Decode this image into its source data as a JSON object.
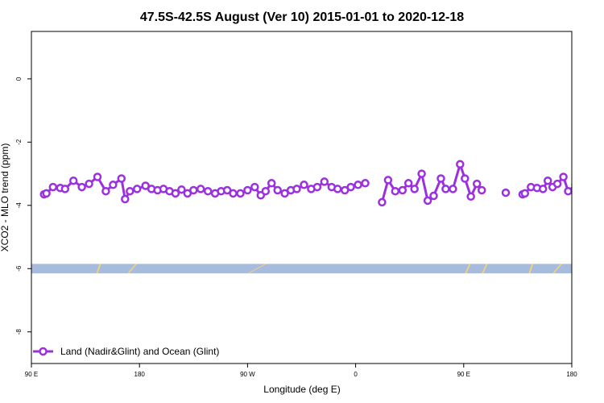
{
  "chart_data": {
    "type": "line",
    "title": "47.5S-42.5S August (Ver 10)   2015-01-01 to 2020-12-18",
    "xlabel": "Longitude (deg E)",
    "ylabel": "XCO2 - MLO trend (ppm)",
    "xlim": [
      90,
      540
    ],
    "ylim": [
      -9,
      1.5
    ],
    "x_ticks": [
      {
        "value": 90,
        "label": "90 E"
      },
      {
        "value": 180,
        "label": "180"
      },
      {
        "value": 270,
        "label": "90 W"
      },
      {
        "value": 360,
        "label": "0"
      },
      {
        "value": 450,
        "label": "90 E"
      },
      {
        "value": 540,
        "label": "180"
      }
    ],
    "y_ticks": [
      {
        "value": 0,
        "label": "0"
      },
      {
        "value": -2,
        "label": "-2"
      },
      {
        "value": -4,
        "label": "-4"
      },
      {
        "value": -6,
        "label": "-6"
      },
      {
        "value": -8,
        "label": "-8"
      }
    ],
    "colors": {
      "series": "#9b30e0",
      "ocean": "#a7bcdc",
      "land": "#f5d27a"
    },
    "series": [
      {
        "name": "Land (Nadir&Glint) and Ocean (Glint)",
        "segments": [
          [
            [
              100.5,
              -3.65
            ],
            [
              102.5,
              -3.62
            ],
            [
              108,
              -3.42
            ],
            [
              114,
              -3.45
            ],
            [
              118,
              -3.48
            ],
            [
              125,
              -3.22
            ],
            [
              132,
              -3.42
            ],
            [
              138,
              -3.32
            ],
            [
              145,
              -3.1
            ],
            [
              152,
              -3.55
            ],
            [
              158,
              -3.35
            ],
            [
              165,
              -3.15
            ],
            [
              168,
              -3.8
            ],
            [
              172,
              -3.55
            ],
            [
              178,
              -3.48
            ],
            [
              185,
              -3.38
            ],
            [
              190,
              -3.48
            ],
            [
              195,
              -3.52
            ],
            [
              200,
              -3.48
            ],
            [
              205,
              -3.55
            ],
            [
              210,
              -3.62
            ],
            [
              215,
              -3.5
            ],
            [
              220,
              -3.62
            ],
            [
              225,
              -3.52
            ],
            [
              231,
              -3.48
            ],
            [
              237,
              -3.55
            ],
            [
              243,
              -3.62
            ],
            [
              248,
              -3.55
            ],
            [
              253,
              -3.52
            ],
            [
              258,
              -3.62
            ],
            [
              264,
              -3.62
            ],
            [
              270,
              -3.52
            ],
            [
              276,
              -3.42
            ],
            [
              281,
              -3.68
            ],
            [
              285,
              -3.55
            ],
            [
              290,
              -3.3
            ],
            [
              295,
              -3.52
            ],
            [
              301,
              -3.62
            ],
            [
              306,
              -3.52
            ],
            [
              311,
              -3.48
            ],
            [
              317,
              -3.35
            ],
            [
              323,
              -3.48
            ],
            [
              328,
              -3.42
            ],
            [
              334,
              -3.25
            ],
            [
              340,
              -3.42
            ],
            [
              345,
              -3.48
            ],
            [
              351,
              -3.52
            ],
            [
              356,
              -3.42
            ],
            [
              362,
              -3.35
            ],
            [
              368,
              -3.3
            ]
          ],
          [
            [
              382,
              -3.9
            ],
            [
              387,
              -3.2
            ],
            [
              393,
              -3.55
            ],
            [
              399,
              -3.52
            ],
            [
              404,
              -3.3
            ],
            [
              409,
              -3.48
            ],
            [
              415,
              -3.0
            ],
            [
              420,
              -3.85
            ],
            [
              425,
              -3.7
            ],
            [
              431,
              -3.15
            ],
            [
              435,
              -3.48
            ],
            [
              441,
              -3.48
            ],
            [
              447,
              -2.7
            ],
            [
              451,
              -3.15
            ],
            [
              456,
              -3.72
            ],
            [
              461,
              -3.32
            ],
            [
              465,
              -3.52
            ]
          ],
          [
            [
              485,
              -3.6
            ]
          ],
          [
            [
              499,
              -3.65
            ],
            [
              501,
              -3.62
            ],
            [
              506,
              -3.42
            ],
            [
              511,
              -3.45
            ],
            [
              516,
              -3.48
            ],
            [
              520,
              -3.22
            ],
            [
              524,
              -3.42
            ],
            [
              528,
              -3.32
            ],
            [
              533,
              -3.1
            ],
            [
              537,
              -3.55
            ],
            [
              543,
              -3.35
            ],
            [
              548,
              -3.15
            ],
            [
              551,
              -3.8
            ],
            [
              555,
              -3.55
            ],
            [
              560,
              -3.48
            ],
            [
              565,
              -3.38
            ],
            [
              570,
              -3.5
            ]
          ]
        ]
      }
    ],
    "surface_band": {
      "y_range": [
        -6.15,
        -5.85
      ],
      "land_ranges": [
        [
          144,
          148
        ],
        [
          170,
          178
        ],
        [
          270,
          286
        ],
        [
          451,
          456
        ],
        [
          465,
          470
        ],
        [
          504,
          508
        ],
        [
          524,
          532
        ],
        [
          635,
          640
        ]
      ]
    },
    "legend": {
      "position": "bottom-left",
      "label": "Land (Nadir&Glint) and Ocean (Glint)"
    },
    "grid": false
  }
}
